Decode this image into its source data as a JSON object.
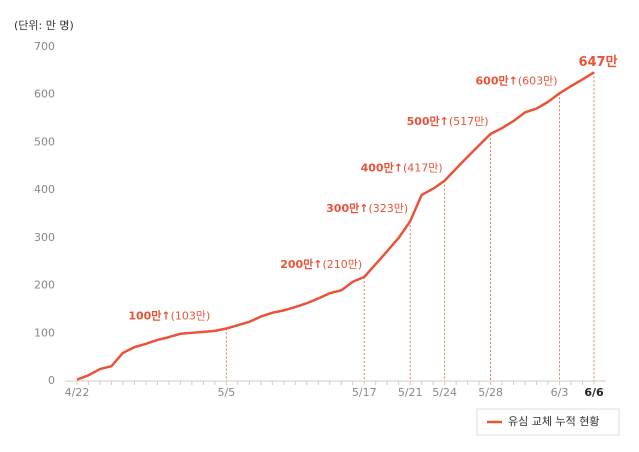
{
  "chart_data": {
    "type": "line",
    "unit_label": "(단위: 만 명)",
    "categories": [
      "4/22",
      null,
      null,
      null,
      null,
      null,
      null,
      null,
      null,
      null,
      null,
      null,
      null,
      "5/5",
      null,
      null,
      null,
      null,
      null,
      null,
      null,
      null,
      null,
      null,
      null,
      "5/17",
      null,
      null,
      null,
      "5/21",
      null,
      null,
      "5/24",
      null,
      null,
      null,
      "5/28",
      null,
      null,
      null,
      null,
      null,
      "6/3",
      null,
      null,
      "6/6"
    ],
    "series": [
      {
        "name": "유심 교체 누적 현황",
        "color": "#e8533a",
        "values": [
          3,
          12,
          25,
          31,
          59,
          71,
          78,
          86,
          92,
          99,
          101,
          103,
          105,
          110,
          117,
          124,
          135,
          143,
          148,
          155,
          163,
          173,
          184,
          190,
          208,
          218,
          245,
          272,
          300,
          335,
          390,
          403,
          420,
          445,
          470,
          494,
          518,
          530,
          545,
          563,
          571,
          585,
          603,
          618,
          632,
          647
        ]
      }
    ],
    "ylim": [
      0,
      700
    ],
    "yticks": [
      0,
      100,
      200,
      300,
      400,
      500,
      600,
      700
    ],
    "annotations": [
      {
        "text": "100만↑",
        "detail": "(103만)"
      },
      {
        "text": "200만↑",
        "detail": "(210만)"
      },
      {
        "text": "300만↑",
        "detail": "(323만)"
      },
      {
        "text": "400만↑",
        "detail": "(417만)"
      },
      {
        "text": "500만↑",
        "detail": "(517만)"
      },
      {
        "text": "600만↑",
        "detail": "(603만)"
      }
    ],
    "end_label": "647만"
  }
}
